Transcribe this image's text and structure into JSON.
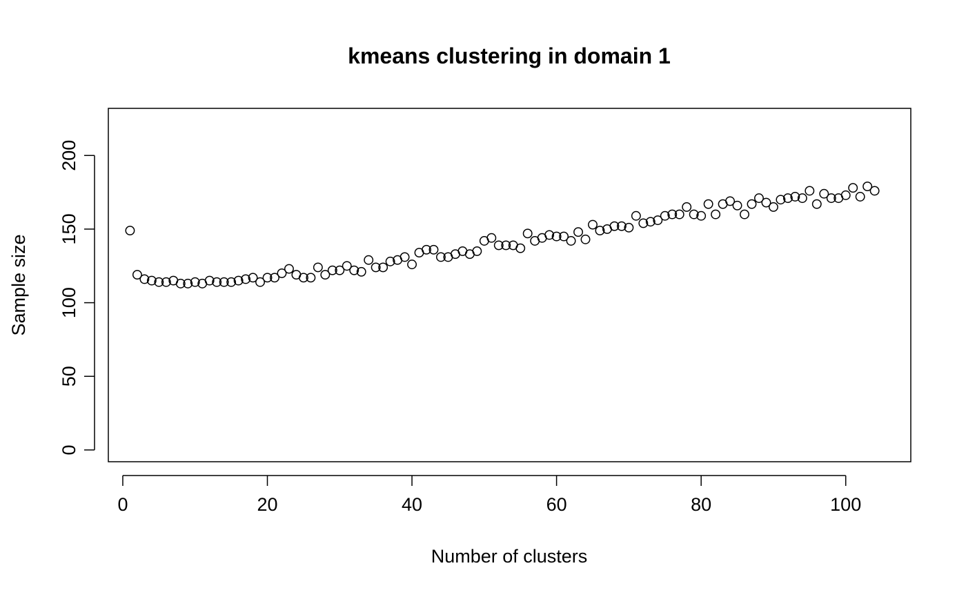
{
  "chart_data": {
    "type": "scatter",
    "title": "kmeans clustering in domain 1",
    "xlabel": "Number of clusters",
    "ylabel": "Sample size",
    "xlim": [
      -2,
      109
    ],
    "ylim": [
      -8,
      232
    ],
    "x_ticks": [
      0,
      20,
      40,
      60,
      80,
      100
    ],
    "y_ticks": [
      0,
      50,
      100,
      150,
      200
    ],
    "grid": false,
    "legend": "none",
    "marker": "open-circle",
    "series": [
      {
        "x": [
          1,
          2,
          3,
          4,
          5,
          6,
          7,
          8,
          9,
          10,
          11,
          12,
          13,
          14,
          15,
          16,
          17,
          18,
          19,
          20,
          21,
          22,
          23,
          24,
          25,
          26,
          27,
          28,
          29,
          30,
          31,
          32,
          33,
          34,
          35,
          36,
          37,
          38,
          39,
          40,
          41,
          42,
          43,
          44,
          45,
          46,
          47,
          48,
          49,
          50,
          51,
          52,
          53,
          54,
          55,
          56,
          57,
          58,
          59,
          60,
          61,
          62,
          63,
          64,
          65,
          66,
          67,
          68,
          69,
          70,
          71,
          72,
          73,
          74,
          75,
          76,
          77,
          78,
          79,
          80,
          81,
          82,
          83,
          84,
          85,
          86,
          87,
          88,
          89,
          90,
          91,
          92,
          93,
          94,
          95,
          96,
          97,
          98,
          99,
          100,
          101,
          102,
          103,
          104
        ],
        "y": [
          149,
          119,
          116,
          115,
          114,
          114,
          115,
          113,
          113,
          114,
          113,
          115,
          114,
          114,
          114,
          115,
          116,
          117,
          114,
          117,
          117,
          120,
          123,
          119,
          117,
          117,
          124,
          119,
          122,
          122,
          125,
          122,
          121,
          129,
          124,
          124,
          128,
          129,
          131,
          126,
          134,
          136,
          136,
          131,
          131,
          133,
          135,
          133,
          135,
          142,
          144,
          139,
          139,
          139,
          137,
          147,
          142,
          144,
          146,
          145,
          145,
          142,
          148,
          143,
          153,
          149,
          150,
          152,
          152,
          151,
          159,
          154,
          155,
          156,
          159,
          160,
          160,
          165,
          160,
          159,
          167,
          160,
          167,
          169,
          166,
          160,
          167,
          171,
          168,
          165,
          170,
          171,
          172,
          171,
          176,
          167,
          174,
          171,
          171,
          173,
          178,
          172,
          179,
          176
        ]
      }
    ]
  }
}
